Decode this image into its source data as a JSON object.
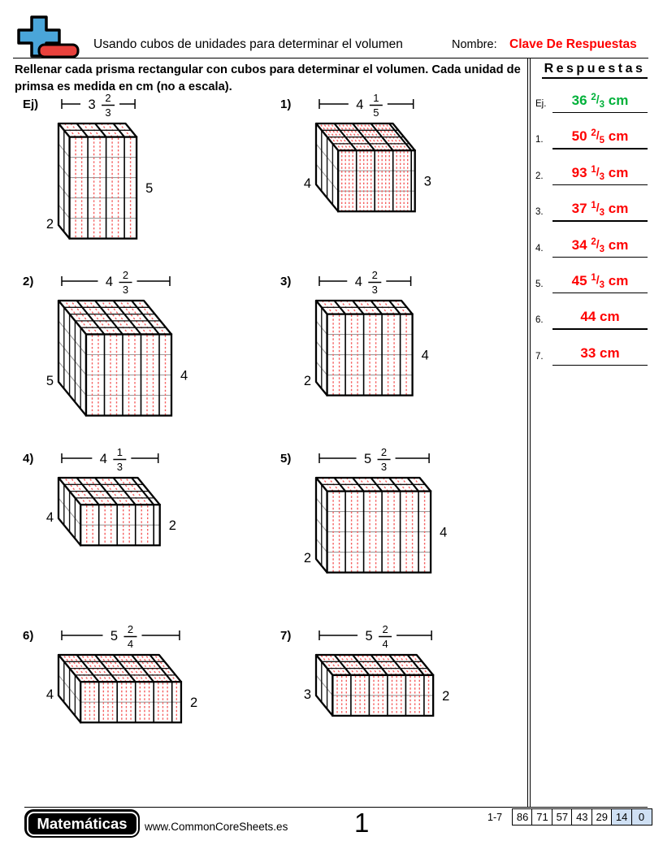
{
  "header": {
    "title": "Usando cubos de unidades para determinar el volumen",
    "name_label": "Nombre:",
    "name_value": "Clave De Respuestas"
  },
  "instructions": "Rellenar cada prisma rectangular con cubos para determinar el volumen. Cada unidad de primsa es medida en cm (no a escala).",
  "answers": {
    "title": "Respuestas",
    "items": [
      {
        "label": "Ej.",
        "whole": "36",
        "num": "2",
        "den": "3",
        "unit": "cm",
        "color": "#00b13a"
      },
      {
        "label": "1.",
        "whole": "50",
        "num": "2",
        "den": "5",
        "unit": "cm",
        "color": "#fe0000"
      },
      {
        "label": "2.",
        "whole": "93",
        "num": "1",
        "den": "3",
        "unit": "cm",
        "color": "#fe0000"
      },
      {
        "label": "3.",
        "whole": "37",
        "num": "1",
        "den": "3",
        "unit": "cm",
        "color": "#fe0000"
      },
      {
        "label": "4.",
        "whole": "34",
        "num": "2",
        "den": "3",
        "unit": "cm",
        "color": "#fe0000"
      },
      {
        "label": "5.",
        "whole": "45",
        "num": "1",
        "den": "3",
        "unit": "cm",
        "color": "#fe0000"
      },
      {
        "label": "6.",
        "whole": "44",
        "num": "",
        "den": "",
        "unit": "cm",
        "color": "#fe0000"
      },
      {
        "label": "7.",
        "whole": "33",
        "num": "",
        "den": "",
        "unit": "cm",
        "color": "#fe0000"
      }
    ]
  },
  "problems": [
    {
      "label": "Ej)",
      "width": {
        "whole": 3,
        "num": 2,
        "den": 3
      },
      "height": 5,
      "depth": 2
    },
    {
      "label": "1)",
      "width": {
        "whole": 4,
        "num": 1,
        "den": 5
      },
      "height": 3,
      "depth": 4
    },
    {
      "label": "2)",
      "width": {
        "whole": 4,
        "num": 2,
        "den": 3
      },
      "height": 4,
      "depth": 5
    },
    {
      "label": "3)",
      "width": {
        "whole": 4,
        "num": 2,
        "den": 3
      },
      "height": 4,
      "depth": 2
    },
    {
      "label": "4)",
      "width": {
        "whole": 4,
        "num": 1,
        "den": 3
      },
      "height": 2,
      "depth": 4
    },
    {
      "label": "5)",
      "width": {
        "whole": 5,
        "num": 2,
        "den": 3
      },
      "height": 4,
      "depth": 2
    },
    {
      "label": "6)",
      "width": {
        "whole": 5,
        "num": 2,
        "den": 4
      },
      "height": 2,
      "depth": 4
    },
    {
      "label": "7)",
      "width": {
        "whole": 5,
        "num": 2,
        "den": 4
      },
      "height": 2,
      "depth": 3
    }
  ],
  "footer": {
    "brand": "Matemáticas",
    "website": "www.CommonCoreSheets.es",
    "page_number": "1",
    "score_label": "1-7",
    "scores": [
      {
        "v": "86",
        "hl": false
      },
      {
        "v": "71",
        "hl": false
      },
      {
        "v": "57",
        "hl": false
      },
      {
        "v": "43",
        "hl": false
      },
      {
        "v": "29",
        "hl": false
      },
      {
        "v": "14",
        "hl": true
      },
      {
        "v": "0",
        "hl": true
      }
    ]
  },
  "colors": {
    "answer_red": "#fe0000",
    "answer_green": "#00b13a",
    "cube_dash": "#f55f5f",
    "grid_gray": "#9b9b9b",
    "score_highlight": "#cfe0f4",
    "logo_blue": "#4aa5d9",
    "logo_red": "#e8413c"
  }
}
